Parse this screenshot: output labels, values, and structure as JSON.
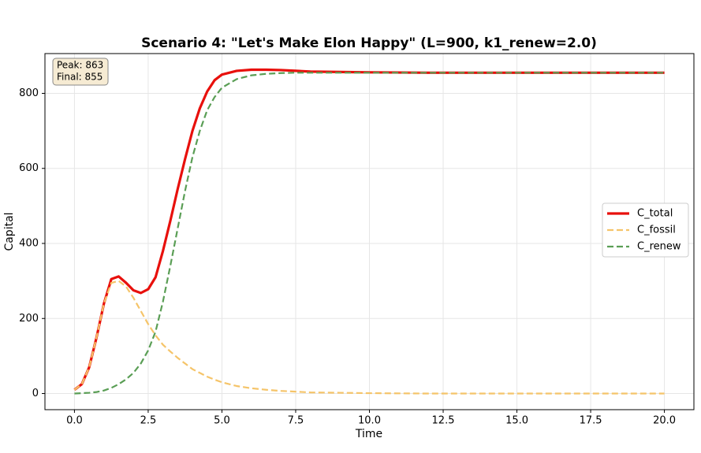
{
  "chart_data": {
    "type": "line",
    "title": "Scenario 4: \"Let's Make Elon Happy\" (L=900, k1_renew=2.0)",
    "x_label": "Time",
    "y_label": "Capital",
    "annotation": [
      "Peak: 863",
      "Final: 855"
    ],
    "x": [
      0,
      0.25,
      0.5,
      0.75,
      1,
      1.25,
      1.5,
      1.75,
      2,
      2.25,
      2.5,
      2.75,
      3,
      3.25,
      3.5,
      3.75,
      4,
      4.25,
      4.5,
      4.75,
      5,
      5.5,
      6,
      6.5,
      7,
      7.5,
      8,
      9,
      10,
      12,
      15,
      20
    ],
    "series": [
      {
        "name": "C_total",
        "color": "#e8100c",
        "dash": false,
        "values": [
          10,
          25,
          70,
          150,
          240,
          305,
          312,
          295,
          275,
          268,
          278,
          310,
          380,
          460,
          545,
          625,
          700,
          760,
          805,
          835,
          850,
          860,
          863,
          863,
          862,
          860,
          858,
          857,
          856,
          855,
          855,
          855
        ]
      },
      {
        "name": "C_fossil",
        "color": "#f5c469",
        "dash": true,
        "values": [
          10,
          25,
          70,
          150,
          240,
          295,
          300,
          285,
          255,
          220,
          185,
          155,
          130,
          112,
          95,
          80,
          65,
          55,
          45,
          37,
          30,
          20,
          14,
          10,
          7,
          5,
          3,
          2,
          1,
          0,
          0,
          0
        ]
      },
      {
        "name": "C_renew",
        "color": "#5a9e55",
        "dash": true,
        "values": [
          0,
          1,
          2,
          4,
          8,
          15,
          25,
          38,
          55,
          80,
          115,
          165,
          245,
          340,
          440,
          540,
          630,
          700,
          755,
          790,
          815,
          838,
          848,
          852,
          854,
          855,
          855,
          855,
          855,
          855,
          855,
          855
        ]
      }
    ],
    "xlim": [
      -1,
      21
    ],
    "ylim": [
      -43,
      906
    ],
    "xticks": [
      {
        "value": 0,
        "label": "0.0"
      },
      {
        "value": 2.5,
        "label": "2.5"
      },
      {
        "value": 5,
        "label": "5.0"
      },
      {
        "value": 7.5,
        "label": "7.5"
      },
      {
        "value": 10,
        "label": "10.0"
      },
      {
        "value": 12.5,
        "label": "12.5"
      },
      {
        "value": 15,
        "label": "15.0"
      },
      {
        "value": 17.5,
        "label": "17.5"
      },
      {
        "value": 20,
        "label": "20.0"
      }
    ],
    "yticks": [
      0,
      200,
      400,
      600,
      800
    ],
    "grid": true,
    "legend": "right"
  }
}
